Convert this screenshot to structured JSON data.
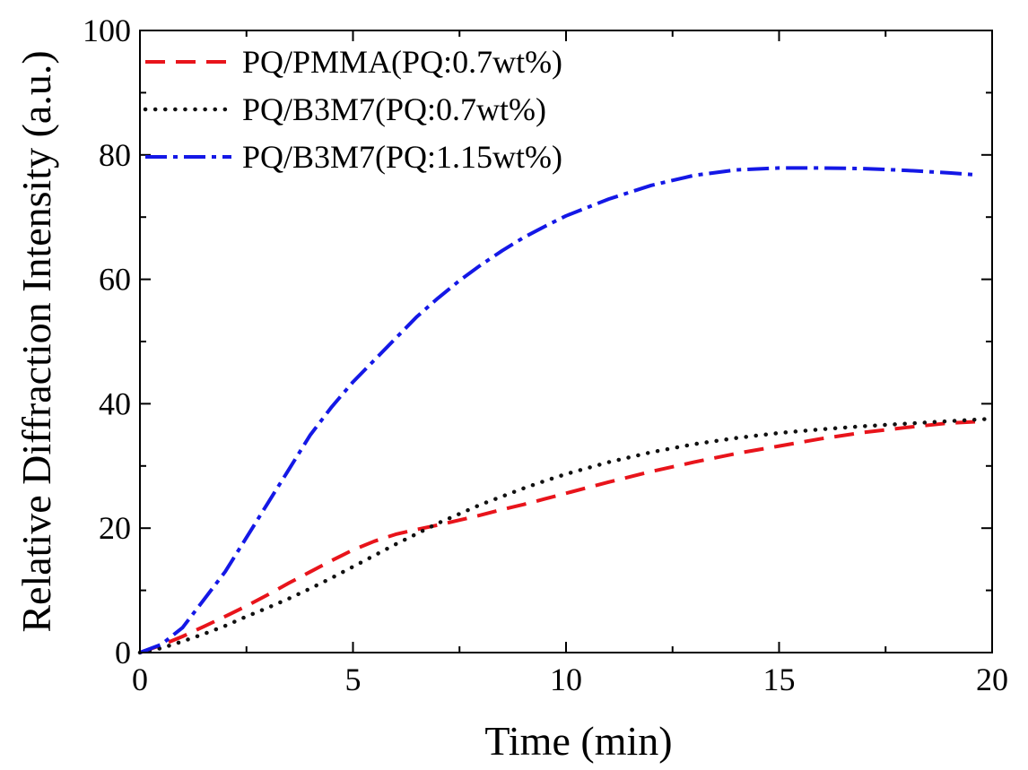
{
  "chart_data": {
    "type": "line",
    "title": "",
    "xlabel": "Time (min)",
    "ylabel": "Relative Diffraction Intensity (a.u.)",
    "xlim": [
      0,
      20
    ],
    "ylim": [
      0,
      100
    ],
    "xticks": [
      0,
      5,
      10,
      15,
      20
    ],
    "yticks": [
      0,
      20,
      40,
      60,
      80,
      100
    ],
    "grid": false,
    "legend_position": "top-left",
    "series": [
      {
        "name": "PQ/PMMA(PQ:0.7wt%)",
        "color": "#e8141b",
        "style": "dash",
        "x": [
          0,
          0.5,
          1,
          1.5,
          2,
          2.5,
          3,
          3.5,
          4,
          4.5,
          5,
          5.5,
          6,
          6.5,
          7,
          7.5,
          8,
          8.5,
          9,
          9.5,
          10,
          11,
          12,
          13,
          14,
          15,
          16,
          17,
          18,
          19,
          19.6
        ],
        "y": [
          0,
          1.2,
          2.6,
          4.2,
          5.8,
          7.5,
          9.3,
          11.2,
          13,
          14.8,
          16.5,
          17.9,
          19,
          19.8,
          20.5,
          21.3,
          22.1,
          23,
          23.8,
          24.7,
          25.6,
          27.4,
          29.1,
          30.6,
          32,
          33.2,
          34.4,
          35.4,
          36.2,
          36.9,
          37.1
        ]
      },
      {
        "name": "PQ/B3M7(PQ:0.7wt%)",
        "color": "#111111",
        "style": "dot",
        "x": [
          0,
          0.5,
          1,
          1.5,
          2,
          2.5,
          3,
          3.5,
          4,
          4.5,
          5,
          5.5,
          6,
          6.5,
          7,
          7.5,
          8,
          8.5,
          9,
          9.5,
          10,
          11,
          12,
          13,
          14,
          15,
          16,
          17,
          18,
          19,
          20
        ],
        "y": [
          0,
          0.7,
          1.8,
          3,
          4.3,
          5.8,
          7.2,
          8.7,
          10.3,
          12,
          13.8,
          15.6,
          17.4,
          19.1,
          20.8,
          22.3,
          23.8,
          25.1,
          26.4,
          27.6,
          28.7,
          30.6,
          32.2,
          33.5,
          34.5,
          35.3,
          35.9,
          36.4,
          36.8,
          37.2,
          37.6
        ]
      },
      {
        "name": "PQ/B3M7(PQ:1.15wt%)",
        "color": "#1418e6",
        "style": "dashdot",
        "x": [
          0,
          0.5,
          1,
          1.5,
          2,
          2.5,
          3,
          3.5,
          4,
          4.5,
          5,
          5.5,
          6,
          6.5,
          7,
          7.5,
          8,
          8.5,
          9,
          9.5,
          10,
          11,
          12,
          13,
          14,
          15,
          16,
          17,
          18,
          19,
          19.6
        ],
        "y": [
          0,
          1.3,
          4,
          8.5,
          13,
          18.5,
          24,
          29.5,
          35,
          39.5,
          43.5,
          47,
          50.5,
          54,
          57,
          59.8,
          62.3,
          64.6,
          66.7,
          68.5,
          70.2,
          72.9,
          75.1,
          76.7,
          77.6,
          77.9,
          77.9,
          77.8,
          77.5,
          77.1,
          76.8
        ]
      }
    ]
  }
}
